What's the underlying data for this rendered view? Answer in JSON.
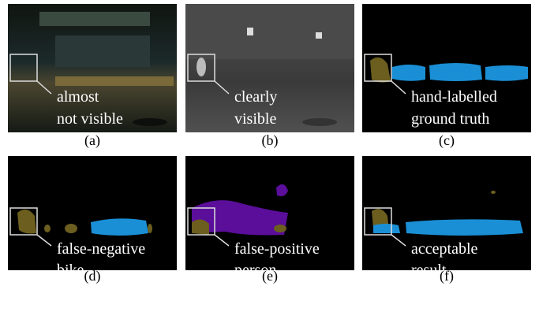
{
  "panels": [
    {
      "label": "(a)",
      "annotation": [
        "almost",
        "not visible"
      ]
    },
    {
      "label": "(b)",
      "annotation": [
        "clearly",
        "visible"
      ]
    },
    {
      "label": "(c)",
      "annotation": [
        "hand-labelled",
        "ground truth"
      ]
    },
    {
      "label": "(d)",
      "annotation": [
        "false-negative",
        "bike"
      ]
    },
    {
      "label": "(e)",
      "annotation": [
        "false-positive",
        "person"
      ]
    },
    {
      "label": "(f)",
      "annotation": [
        "acceptable",
        "result"
      ]
    }
  ]
}
